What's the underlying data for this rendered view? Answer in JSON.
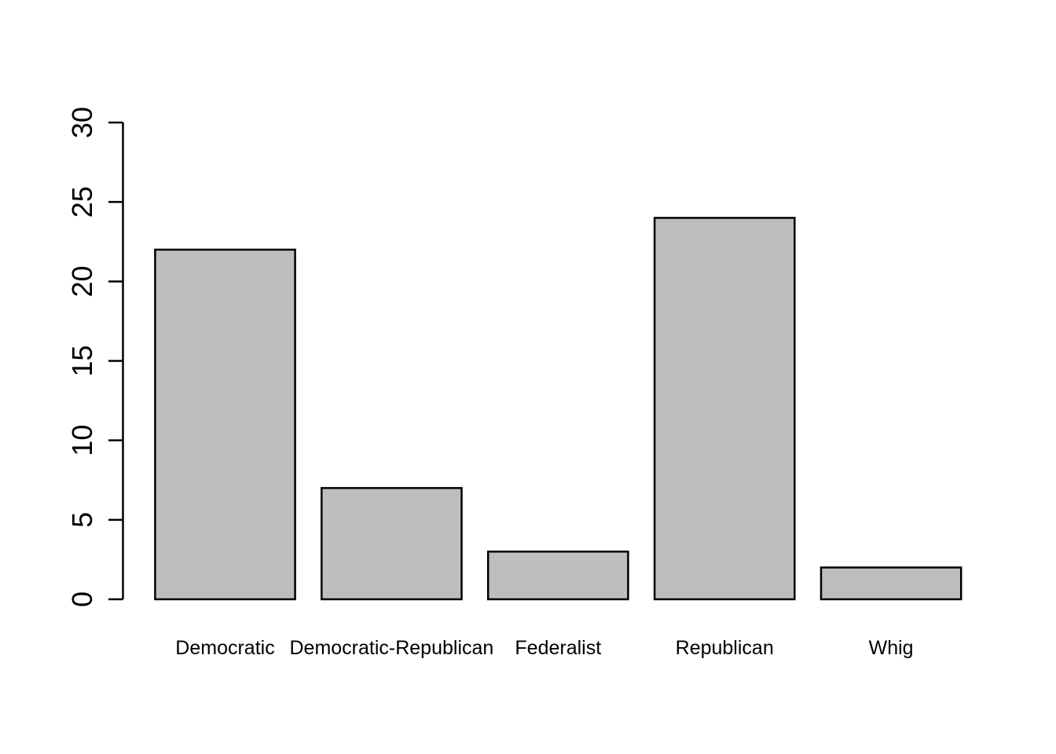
{
  "figure": {
    "background": "#FFFFFF"
  },
  "chart_data": {
    "type": "bar",
    "categories": [
      "Democratic",
      "Democratic-Republican",
      "Federalist",
      "Republican",
      "Whig"
    ],
    "values": [
      22,
      7,
      3,
      24,
      2
    ],
    "title": "",
    "xlabel": "",
    "ylabel": "",
    "ylim": [
      0,
      30
    ],
    "yticks": [
      0,
      5,
      10,
      15,
      20,
      25,
      30
    ],
    "bar_fill": "#BEBEBE",
    "bar_border": "#000000",
    "axis_color": "#000000",
    "text_color": "#000000",
    "grid": false,
    "legend_position": "none"
  }
}
